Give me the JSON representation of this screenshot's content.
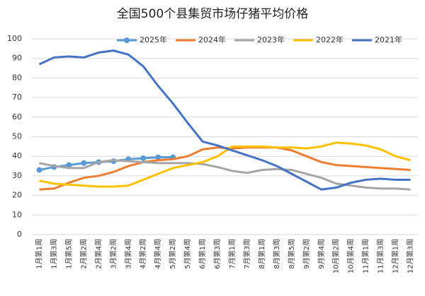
{
  "chart_data": {
    "type": "line",
    "title": "全国500个县集贸市场仔猪平均价格",
    "categories": [
      "1月第1周",
      "1月第3周",
      "1月第5周",
      "2月第2周",
      "2月第4周",
      "3月第2周",
      "3月第4周",
      "4月第2周",
      "4月第4周",
      "5月第2周",
      "5月第4周",
      "6月第1周",
      "6月第3周",
      "7月第1周",
      "7月第3周",
      "8月第1周",
      "8月第3周",
      "8月第5周",
      "9月第2周",
      "9月第4周",
      "10月第2周",
      "10月第4周",
      "11月第1周",
      "11月第3周",
      "12月第1周",
      "12月第3周"
    ],
    "series": [
      {
        "name": "2025年",
        "color": "#5b9bd5",
        "markers": true,
        "values": [
          33,
          34.5,
          35.5,
          36.5,
          37,
          37.5,
          38.5,
          39,
          39.5,
          39.5,
          null,
          null,
          null,
          null,
          null,
          null,
          null,
          null,
          null,
          null,
          null,
          null,
          null,
          null,
          null,
          null
        ]
      },
      {
        "name": "2024年",
        "color": "#ed7d31",
        "values": [
          23,
          23.5,
          26.5,
          29,
          30,
          32,
          35,
          37,
          38,
          38.5,
          40,
          43.5,
          44.5,
          44,
          44.5,
          44.5,
          44.5,
          43,
          40,
          37,
          35.5,
          35,
          34.5,
          34,
          33.5,
          33
        ]
      },
      {
        "name": "2023年",
        "color": "#a5a5a5",
        "values": [
          36.5,
          35,
          34,
          34,
          37,
          38,
          37.5,
          37,
          36.5,
          36.5,
          36.5,
          36,
          34.5,
          32.5,
          31.5,
          33,
          33.5,
          33,
          31,
          29,
          26,
          25,
          24,
          23.5,
          23.5,
          23
        ]
      },
      {
        "name": "2022年",
        "color": "#ffc000",
        "values": [
          27.5,
          26,
          25.5,
          25,
          24.5,
          24.5,
          25,
          28,
          31,
          34,
          35.5,
          37,
          40,
          45,
          45,
          45,
          44.5,
          44.5,
          44,
          45,
          47,
          46.5,
          45.5,
          43.5,
          40,
          38
        ]
      },
      {
        "name": "2021年",
        "color": "#4472c4",
        "values": [
          87,
          90.5,
          91,
          90.5,
          93,
          94,
          92,
          86,
          76,
          67,
          57,
          47.5,
          45.5,
          43,
          40.5,
          38,
          35,
          31,
          27,
          23,
          24,
          26.5,
          28,
          28.5,
          28,
          28
        ]
      }
    ],
    "ylim": [
      0,
      100
    ],
    "yticks": [
      0,
      10,
      20,
      30,
      40,
      50,
      60,
      70,
      80,
      90,
      100
    ],
    "grid": true
  }
}
